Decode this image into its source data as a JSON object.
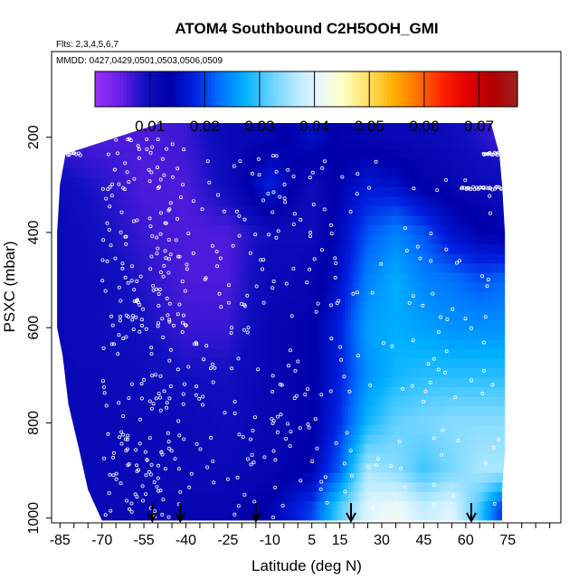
{
  "chart_data": {
    "type": "heatmap",
    "title": "ATOM4 Southbound C2H5OOH_GMI",
    "subtitle_flights": "Flts: 2,3,4,5,6,7",
    "subtitle_dates": "MMDD: 0427,0429,0501,0503,0506,0509",
    "xlabel": "Latitude (deg N)",
    "ylabel": "PSXC (mbar)",
    "xlim": [
      -88,
      94
    ],
    "ylim": [
      1010,
      20
    ],
    "x_ticks": [
      -85,
      -70,
      -55,
      -40,
      -25,
      -10,
      5,
      15,
      30,
      45,
      60,
      75
    ],
    "x_tick_labels": [
      "-85",
      "-70",
      "-55",
      "-40",
      "-25",
      "-10",
      "5",
      "15",
      "30",
      "45",
      "60",
      "75"
    ],
    "x_minor_ticks": [
      -80,
      -75,
      -65,
      -60,
      -50,
      -45,
      -35,
      -30,
      -20,
      -15,
      -5,
      0,
      10,
      20,
      25,
      35,
      40,
      50,
      55,
      65,
      70,
      80,
      85,
      90
    ],
    "y_ticks": [
      200,
      400,
      600,
      800,
      1000
    ],
    "y_tick_labels": [
      "200",
      "400",
      "600",
      "800",
      "1000"
    ],
    "colorbar": {
      "ticks": [
        0.01,
        0.02,
        0.03,
        0.04,
        0.05,
        0.06,
        0.07
      ],
      "tick_labels": [
        "0.01",
        "0.02",
        "0.03",
        "0.04",
        "0.05",
        "0.06",
        "0.07"
      ],
      "range": [
        0.0,
        0.077
      ],
      "colors": [
        "#9a30f8",
        "#6a20e8",
        "#1010c0",
        "#0000aa",
        "#0020e0",
        "#0070ff",
        "#00b0ff",
        "#60d0ff",
        "#b0e8ff",
        "#e8f8ff",
        "#ffffc0",
        "#ffe060",
        "#ffb000",
        "#ff7000",
        "#ff2000",
        "#e00000",
        "#b00000",
        "#a02020"
      ]
    },
    "field_grid": {
      "lat": [
        -85,
        -70,
        -55,
        -40,
        -25,
        -10,
        5,
        15,
        25,
        35,
        45,
        55,
        65,
        72
      ],
      "pressure": [
        200,
        300,
        400,
        500,
        600,
        700,
        800,
        900,
        980
      ],
      "values": [
        [
          0.006,
          0.006,
          0.006,
          0.007,
          0.011,
          0.012,
          0.016,
          0.013,
          0.012,
          0.011,
          0.011,
          0.01,
          0.008,
          0.007
        ],
        [
          0.01,
          0.008,
          0.006,
          0.006,
          0.01,
          0.018,
          0.01,
          0.014,
          0.017,
          0.016,
          0.013,
          0.012,
          0.011,
          0.01
        ],
        [
          0.011,
          0.009,
          0.007,
          0.006,
          0.006,
          0.01,
          0.01,
          0.015,
          0.021,
          0.024,
          0.021,
          0.016,
          0.014,
          0.013
        ],
        [
          0.011,
          0.01,
          0.008,
          0.006,
          0.006,
          0.011,
          0.012,
          0.016,
          0.024,
          0.027,
          0.024,
          0.023,
          0.021,
          0.022
        ],
        [
          0.011,
          0.01,
          0.009,
          0.007,
          0.007,
          0.012,
          0.013,
          0.018,
          0.026,
          0.027,
          0.026,
          0.025,
          0.025,
          0.025
        ],
        [
          0.011,
          0.011,
          0.01,
          0.009,
          0.009,
          0.012,
          0.013,
          0.018,
          0.025,
          0.028,
          0.029,
          0.029,
          0.029,
          0.029
        ],
        [
          0.011,
          0.011,
          0.011,
          0.011,
          0.01,
          0.012,
          0.013,
          0.019,
          0.028,
          0.032,
          0.033,
          0.034,
          0.034,
          0.034
        ],
        [
          0.011,
          0.011,
          0.011,
          0.011,
          0.011,
          0.012,
          0.014,
          0.022,
          0.036,
          0.034,
          0.03,
          0.033,
          0.036,
          0.036
        ],
        [
          0.011,
          0.011,
          0.012,
          0.012,
          0.012,
          0.014,
          0.02,
          0.031,
          0.04,
          0.042,
          0.038,
          0.04,
          0.03,
          0.02
        ]
      ]
    },
    "coverage": [
      {
        "p": 170,
        "lat_min": -49,
        "lat_max": 69
      },
      {
        "p": 235,
        "lat_min": -83,
        "lat_max": 72
      },
      {
        "p": 300,
        "lat_min": -85,
        "lat_max": 73
      },
      {
        "p": 400,
        "lat_min": -86,
        "lat_max": 74
      },
      {
        "p": 500,
        "lat_min": -86,
        "lat_max": 74
      },
      {
        "p": 600,
        "lat_min": -86,
        "lat_max": 74
      },
      {
        "p": 660,
        "lat_min": -84,
        "lat_max": 74
      },
      {
        "p": 760,
        "lat_min": -82,
        "lat_max": 74
      },
      {
        "p": 860,
        "lat_min": -78,
        "lat_max": 74
      },
      {
        "p": 940,
        "lat_min": -75,
        "lat_max": 73
      },
      {
        "p": 1005,
        "lat_min": -70,
        "lat_max": 73
      }
    ],
    "arrows_lat": [
      -52,
      -42,
      -15,
      19,
      62
    ]
  }
}
